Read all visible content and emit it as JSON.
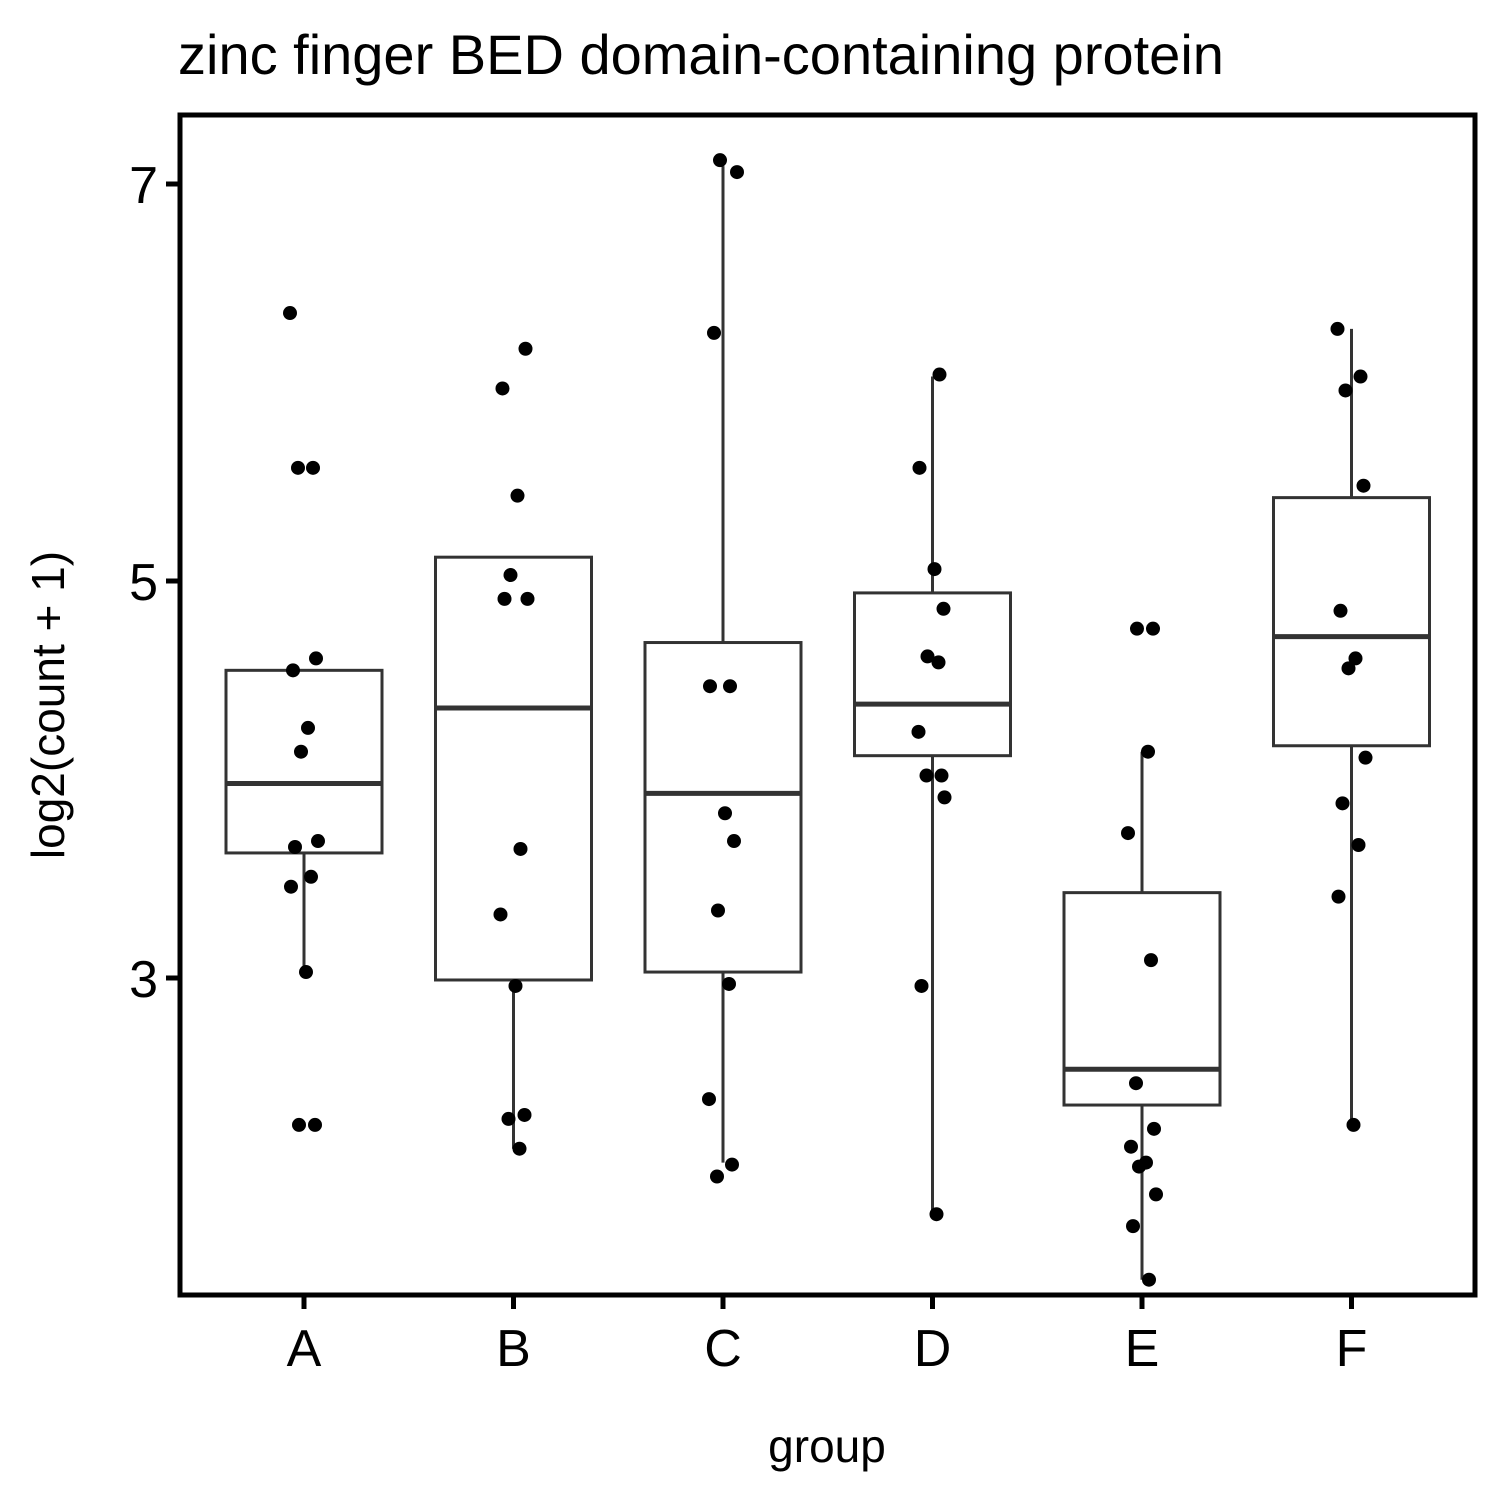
{
  "chart_data": {
    "type": "box",
    "title": "zinc finger BED domain-containing protein",
    "xlabel": "group",
    "ylabel": "log2(count + 1)",
    "categories": [
      "A",
      "B",
      "C",
      "D",
      "E",
      "F"
    ],
    "yticks": [
      3,
      5,
      7
    ],
    "ylim": [
      1.0,
      7.45
    ],
    "grid": false,
    "legend": "none",
    "boxes": [
      {
        "group": "A",
        "whisker_low": 3.03,
        "q1": 3.63,
        "median": 3.98,
        "q3": 4.55,
        "whisker_high": 4.55
      },
      {
        "group": "B",
        "whisker_low": 2.14,
        "q1": 2.99,
        "median": 4.36,
        "q3": 5.12,
        "whisker_high": 5.12
      },
      {
        "group": "C",
        "whisker_low": 2.07,
        "q1": 3.03,
        "median": 3.93,
        "q3": 4.69,
        "whisker_high": 7.09
      },
      {
        "group": "D",
        "whisker_low": 1.81,
        "q1": 4.12,
        "median": 4.38,
        "q3": 4.94,
        "whisker_high": 6.03
      },
      {
        "group": "E",
        "whisker_low": 1.48,
        "q1": 2.36,
        "median": 2.54,
        "q3": 3.43,
        "whisker_high": 4.14
      },
      {
        "group": "F",
        "whisker_low": 2.26,
        "q1": 4.17,
        "median": 4.72,
        "q3": 5.42,
        "whisker_high": 6.27
      }
    ],
    "points": [
      {
        "group": "A",
        "values": [
          6.35,
          5.57,
          5.57,
          4.61,
          4.55,
          4.26,
          4.14,
          3.69,
          3.66,
          3.51,
          3.46,
          3.03,
          2.26,
          2.26
        ]
      },
      {
        "group": "B",
        "values": [
          6.17,
          5.97,
          5.43,
          5.03,
          4.91,
          4.91,
          3.65,
          3.32,
          2.96,
          2.31,
          2.29,
          2.14
        ]
      },
      {
        "group": "C",
        "values": [
          7.12,
          7.06,
          6.25,
          4.47,
          4.47,
          3.83,
          3.69,
          3.34,
          2.97,
          2.39,
          2.06,
          2.0
        ]
      },
      {
        "group": "D",
        "values": [
          6.04,
          5.57,
          5.06,
          4.86,
          4.62,
          4.59,
          4.24,
          4.02,
          4.02,
          3.91,
          2.96,
          1.81
        ]
      },
      {
        "group": "E",
        "values": [
          4.76,
          4.76,
          4.14,
          3.73,
          3.09,
          2.47,
          2.24,
          2.15,
          2.07,
          2.05,
          1.91,
          1.75,
          1.48
        ]
      },
      {
        "group": "F",
        "values": [
          6.27,
          6.03,
          5.96,
          5.48,
          4.85,
          4.61,
          4.56,
          4.11,
          3.88,
          3.67,
          3.41,
          2.26
        ]
      }
    ]
  }
}
